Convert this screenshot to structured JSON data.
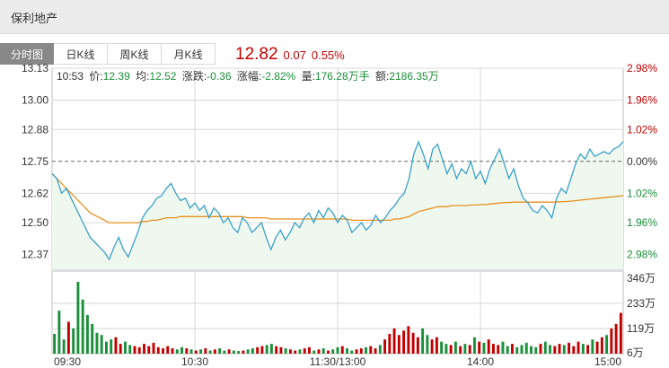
{
  "header": {
    "title": "保利地产"
  },
  "tabs": [
    {
      "label": "分时图",
      "active": true
    },
    {
      "label": "日K线",
      "active": false
    },
    {
      "label": "周K线",
      "active": false
    },
    {
      "label": "月K线",
      "active": false
    }
  ],
  "quote": {
    "price": "12.82",
    "change": "0.07",
    "change_pct": "0.55%",
    "color": "#c00000"
  },
  "info": {
    "time": "10:53",
    "price_label": "价:",
    "price": "12.39",
    "avg_label": "均:",
    "avg": "12.52",
    "chg_label": "涨跌:",
    "chg": "-0.36",
    "pct_label": "涨幅:",
    "pct": "-2.82%",
    "vol_label": "量:",
    "vol": "176.28万手",
    "amt_label": "额:",
    "amt": "2186.35万"
  },
  "colors": {
    "up": "#c00000",
    "down": "#1a8f3a",
    "price_line": "#3aa0c8",
    "avg_line": "#e8901e",
    "area_fill": "#eef8ee",
    "grid": "#d8d8d8"
  },
  "chart_data": {
    "type": "line",
    "prev_close": 12.75,
    "y_ticks": [
      "13.13",
      "13.00",
      "12.88",
      "12.75",
      "12.62",
      "12.50",
      "12.37"
    ],
    "pct_ticks_up": [
      "2.98%",
      "1.96%",
      "1.02%"
    ],
    "pct_tick_zero": "0.00%",
    "pct_ticks_down": [
      "1.02%",
      "1.96%",
      "2.98%"
    ],
    "ylim": [
      12.31,
      13.13
    ],
    "x_ticks": [
      "09:30",
      "10:30",
      "11:30/13:00",
      "14:00",
      "15:00"
    ],
    "series": [
      {
        "name": "价",
        "values": [
          12.7,
          12.68,
          12.62,
          12.64,
          12.6,
          12.56,
          12.52,
          12.48,
          12.44,
          12.42,
          12.4,
          12.38,
          12.35,
          12.4,
          12.44,
          12.39,
          12.36,
          12.41,
          12.46,
          12.52,
          12.55,
          12.57,
          12.6,
          12.61,
          12.64,
          12.66,
          12.62,
          12.59,
          12.6,
          12.56,
          12.58,
          12.55,
          12.57,
          12.52,
          12.56,
          12.54,
          12.5,
          12.52,
          12.48,
          12.46,
          12.52,
          12.5,
          12.46,
          12.48,
          12.5,
          12.44,
          12.39,
          12.44,
          12.47,
          12.43,
          12.46,
          12.5,
          12.48,
          12.52,
          12.54,
          12.5,
          12.55,
          12.52,
          12.56,
          12.54,
          12.5,
          12.53,
          12.51,
          12.46,
          12.48,
          12.5,
          12.47,
          12.49,
          12.53,
          12.5,
          12.52,
          12.55,
          12.57,
          12.6,
          12.62,
          12.68,
          12.78,
          12.83,
          12.78,
          12.72,
          12.8,
          12.82,
          12.76,
          12.7,
          12.74,
          12.68,
          12.72,
          12.7,
          12.75,
          12.68,
          12.71,
          12.66,
          12.72,
          12.76,
          12.8,
          12.74,
          12.68,
          12.72,
          12.65,
          12.6,
          12.58,
          12.55,
          12.54,
          12.57,
          12.55,
          12.52,
          12.6,
          12.64,
          12.62,
          12.68,
          12.74,
          12.78,
          12.76,
          12.8,
          12.77,
          12.78,
          12.79,
          12.78,
          12.8,
          12.81,
          12.83
        ],
        "color": "#3aa0c8"
      },
      {
        "name": "均",
        "values": [
          12.7,
          12.68,
          12.66,
          12.64,
          12.62,
          12.6,
          12.58,
          12.56,
          12.54,
          12.53,
          12.52,
          12.51,
          12.5,
          12.5,
          12.5,
          12.5,
          12.5,
          12.5,
          12.5,
          12.505,
          12.505,
          12.51,
          12.51,
          12.515,
          12.52,
          12.52,
          12.52,
          12.525,
          12.525,
          12.525,
          12.525,
          12.525,
          12.525,
          12.525,
          12.525,
          12.525,
          12.525,
          12.525,
          12.525,
          12.525,
          12.525,
          12.52,
          12.52,
          12.52,
          12.52,
          12.52,
          12.515,
          12.515,
          12.515,
          12.515,
          12.515,
          12.515,
          12.515,
          12.515,
          12.515,
          12.515,
          12.515,
          12.515,
          12.515,
          12.515,
          12.515,
          12.515,
          12.515,
          12.51,
          12.51,
          12.51,
          12.51,
          12.51,
          12.51,
          12.51,
          12.51,
          12.51,
          12.515,
          12.515,
          12.52,
          12.525,
          12.535,
          12.545,
          12.55,
          12.555,
          12.56,
          12.565,
          12.565,
          12.565,
          12.57,
          12.57,
          12.57,
          12.57,
          12.572,
          12.572,
          12.574,
          12.574,
          12.576,
          12.578,
          12.58,
          12.582,
          12.582,
          12.584,
          12.584,
          12.584,
          12.584,
          12.584,
          12.584,
          12.584,
          12.584,
          12.584,
          12.584,
          12.586,
          12.586,
          12.588,
          12.59,
          12.592,
          12.594,
          12.596,
          12.598,
          12.6,
          12.602,
          12.604,
          12.606,
          12.608,
          12.61
        ],
        "color": "#e8901e"
      }
    ],
    "volume": {
      "y_ticks": [
        "346万",
        "233万",
        "119万",
        "6万"
      ],
      "ylim": [
        6,
        346
      ],
      "values": [
        95,
        200,
        70,
        150,
        120,
        330,
        250,
        180,
        140,
        100,
        90,
        60,
        70,
        80,
        50,
        60,
        45,
        40,
        35,
        50,
        40,
        55,
        35,
        30,
        40,
        30,
        25,
        35,
        30,
        25,
        20,
        25,
        30,
        20,
        25,
        30,
        20,
        25,
        20,
        18,
        20,
        25,
        30,
        35,
        40,
        45,
        50,
        40,
        35,
        30,
        25,
        20,
        25,
        30,
        35,
        20,
        25,
        30,
        20,
        25,
        35,
        40,
        30,
        20,
        25,
        30,
        35,
        40,
        30,
        45,
        70,
        95,
        120,
        90,
        110,
        130,
        100,
        80,
        120,
        90,
        70,
        80,
        60,
        50,
        45,
        60,
        40,
        50,
        45,
        80,
        60,
        55,
        70,
        50,
        45,
        60,
        40,
        50,
        35,
        45,
        55,
        40,
        35,
        50,
        60,
        45,
        40,
        50,
        45,
        55,
        40,
        60,
        50,
        45,
        70,
        60,
        80,
        90,
        120,
        140,
        190
      ]
    }
  }
}
